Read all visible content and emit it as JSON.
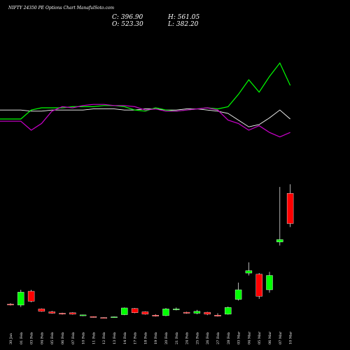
{
  "header": {
    "title": "NIFTY 24350  PE Options  Chart ManafulSoto.com",
    "close_label": "C: 396.90",
    "high_label": "H: 561.05",
    "open_label": "O: 523.30",
    "low_label": "L: 382.20"
  },
  "colors": {
    "background": "#000000",
    "up": "#00ff00",
    "down": "#ff0000",
    "line_green": "#00ff00",
    "line_magenta": "#cc00cc",
    "line_white": "#ffffff"
  },
  "chart_data": {
    "type": "candlestick",
    "categories": [
      "30 Jan",
      "01 Feb",
      "03 Feb",
      "04 Feb",
      "05 Feb",
      "06 Feb",
      "07 Feb",
      "10 Feb",
      "11 Feb",
      "12 Feb",
      "13 Feb",
      "14 Feb",
      "17 Feb",
      "18 Feb",
      "19 Feb",
      "20 Feb",
      "21 Feb",
      "24 Feb",
      "25 Feb",
      "26 Feb",
      "27 Feb",
      "28 Feb",
      "03 Mar",
      "04 Mar",
      "05 Mar",
      "06 Mar",
      "07 Mar",
      "10 Mar"
    ],
    "candles": [
      {
        "o": 60,
        "h": 64,
        "l": 54,
        "c": 58
      },
      {
        "o": 56,
        "h": 120,
        "l": 48,
        "c": 110
      },
      {
        "o": 114,
        "h": 120,
        "l": 68,
        "c": 72
      },
      {
        "o": 40,
        "h": 42,
        "l": 28,
        "c": 30
      },
      {
        "o": 28,
        "h": 32,
        "l": 20,
        "c": 22
      },
      {
        "o": 22,
        "h": 24,
        "l": 16,
        "c": 20
      },
      {
        "o": 24,
        "h": 26,
        "l": 16,
        "c": 18
      },
      {
        "o": 14,
        "h": 16,
        "l": 10,
        "c": 15
      },
      {
        "o": 8,
        "h": 9,
        "l": 4,
        "c": 5
      },
      {
        "o": 4,
        "h": 5,
        "l": 1,
        "c": 2
      },
      {
        "o": 4,
        "h": 8,
        "l": 3,
        "c": 7
      },
      {
        "o": 16,
        "h": 46,
        "l": 14,
        "c": 44
      },
      {
        "o": 42,
        "h": 44,
        "l": 22,
        "c": 24
      },
      {
        "o": 28,
        "h": 30,
        "l": 16,
        "c": 18
      },
      {
        "o": 14,
        "h": 18,
        "l": 8,
        "c": 10
      },
      {
        "o": 12,
        "h": 44,
        "l": 10,
        "c": 40
      },
      {
        "o": 38,
        "h": 46,
        "l": 34,
        "c": 40
      },
      {
        "o": 26,
        "h": 28,
        "l": 20,
        "c": 22
      },
      {
        "o": 22,
        "h": 36,
        "l": 18,
        "c": 30
      },
      {
        "o": 26,
        "h": 28,
        "l": 14,
        "c": 18
      },
      {
        "o": 14,
        "h": 22,
        "l": 8,
        "c": 10
      },
      {
        "o": 18,
        "h": 50,
        "l": 16,
        "c": 46
      },
      {
        "o": 80,
        "h": 150,
        "l": 75,
        "c": 120
      },
      {
        "o": 190,
        "h": 235,
        "l": 180,
        "c": 200
      },
      {
        "o": 185,
        "h": 190,
        "l": 82,
        "c": 93
      },
      {
        "o": 120,
        "h": 195,
        "l": 108,
        "c": 180
      },
      {
        "o": 320,
        "h": 550,
        "l": 305,
        "c": 330
      },
      {
        "o": 523.3,
        "h": 561.05,
        "l": 382.2,
        "c": 396.9
      }
    ],
    "ylim": [
      0,
      600
    ],
    "series": [
      {
        "values": [
          58,
          58,
          57,
          57,
          58,
          58,
          58,
          58,
          59,
          59,
          59,
          58,
          58,
          59,
          59,
          58,
          58,
          59,
          59,
          58,
          57,
          55,
          49,
          43,
          45,
          51,
          58,
          50
        ]
      },
      {
        "values": [
          50,
          50,
          58,
          60,
          60,
          60,
          61,
          61,
          61,
          62,
          62,
          61,
          58,
          57,
          60,
          58,
          57,
          58,
          59,
          60,
          59,
          61,
          72,
          85,
          74,
          88,
          100,
          80
        ]
      },
      {
        "values": [
          48,
          48,
          40,
          46,
          57,
          61,
          60,
          62,
          63,
          63,
          62,
          62,
          61,
          58,
          59,
          57,
          57,
          58,
          59,
          60,
          58,
          49,
          46,
          40,
          44,
          38,
          34,
          38
        ]
      }
    ]
  }
}
